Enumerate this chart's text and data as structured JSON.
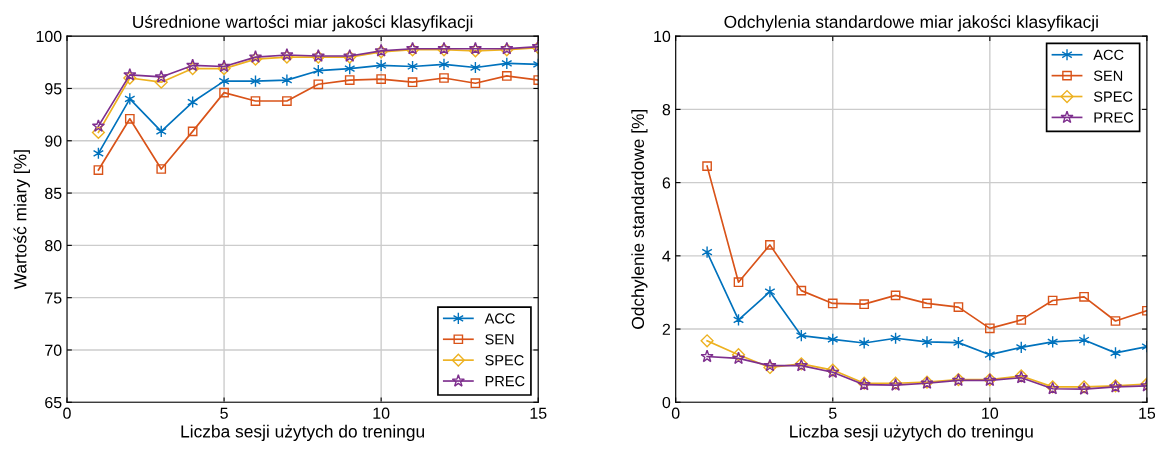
{
  "chart_data": [
    {
      "type": "line",
      "title": "Uśrednione wartości miar jakości klasyfikacji",
      "xlabel": "Liczba sesji użytych do treningu",
      "ylabel": "Wartość miary [%]",
      "x": [
        1,
        2,
        3,
        4,
        5,
        6,
        7,
        8,
        9,
        10,
        11,
        12,
        13,
        14,
        15
      ],
      "xlim": [
        0,
        15
      ],
      "xticks": [
        0,
        5,
        10,
        15
      ],
      "ylim": [
        65,
        100
      ],
      "yticks": [
        65,
        70,
        75,
        80,
        85,
        90,
        95,
        100
      ],
      "grid": true,
      "legend": "bottom right",
      "series": [
        {
          "name": "ACC",
          "color": "#0072bd",
          "marker": "cross",
          "values": [
            88.8,
            94.0,
            90.9,
            93.7,
            95.7,
            95.7,
            95.8,
            96.7,
            96.9,
            97.2,
            97.1,
            97.3,
            97.0,
            97.4,
            97.3
          ]
        },
        {
          "name": "SEN",
          "color": "#d95319",
          "marker": "square",
          "values": [
            87.2,
            92.1,
            87.3,
            90.9,
            94.6,
            93.8,
            93.8,
            95.4,
            95.8,
            95.9,
            95.6,
            96.0,
            95.5,
            96.2,
            95.8
          ]
        },
        {
          "name": "SPEC",
          "color": "#edb120",
          "marker": "diamond",
          "values": [
            90.8,
            96.0,
            95.6,
            96.9,
            96.9,
            97.8,
            98.0,
            98.0,
            98.0,
            98.5,
            98.7,
            98.7,
            98.6,
            98.7,
            98.9
          ]
        },
        {
          "name": "PREC",
          "color": "#7e2f8e",
          "marker": "star",
          "values": [
            91.4,
            96.3,
            96.1,
            97.2,
            97.1,
            98.0,
            98.2,
            98.1,
            98.1,
            98.6,
            98.8,
            98.8,
            98.8,
            98.8,
            99.0
          ]
        }
      ]
    },
    {
      "type": "line",
      "title": "Odchylenia standardowe miar jakości klasyfikacji",
      "xlabel": "Liczba sesji użytych do treningu",
      "ylabel": "Odchylenie standardowe [%]",
      "x": [
        1,
        2,
        3,
        4,
        5,
        6,
        7,
        8,
        9,
        10,
        11,
        12,
        13,
        14,
        15
      ],
      "xlim": [
        0,
        15
      ],
      "xticks": [
        0,
        5,
        10,
        15
      ],
      "ylim": [
        0,
        10
      ],
      "yticks": [
        0,
        2,
        4,
        6,
        8,
        10
      ],
      "grid": true,
      "legend": "top right",
      "series": [
        {
          "name": "ACC",
          "color": "#0072bd",
          "marker": "cross",
          "values": [
            4.1,
            2.25,
            3.02,
            1.82,
            1.72,
            1.62,
            1.75,
            1.65,
            1.63,
            1.3,
            1.5,
            1.65,
            1.7,
            1.35,
            1.52
          ]
        },
        {
          "name": "SEN",
          "color": "#d95319",
          "marker": "square",
          "values": [
            6.45,
            3.28,
            4.3,
            3.05,
            2.7,
            2.68,
            2.92,
            2.7,
            2.6,
            2.02,
            2.25,
            2.78,
            2.88,
            2.22,
            2.5
          ]
        },
        {
          "name": "SPEC",
          "color": "#edb120",
          "marker": "diamond",
          "values": [
            1.68,
            1.3,
            0.95,
            1.05,
            0.88,
            0.52,
            0.52,
            0.55,
            0.62,
            0.62,
            0.72,
            0.42,
            0.42,
            0.45,
            0.5
          ]
        },
        {
          "name": "PREC",
          "color": "#7e2f8e",
          "marker": "star",
          "values": [
            1.25,
            1.2,
            1.0,
            1.0,
            0.82,
            0.48,
            0.47,
            0.52,
            0.6,
            0.6,
            0.67,
            0.37,
            0.36,
            0.42,
            0.45
          ]
        }
      ]
    }
  ]
}
